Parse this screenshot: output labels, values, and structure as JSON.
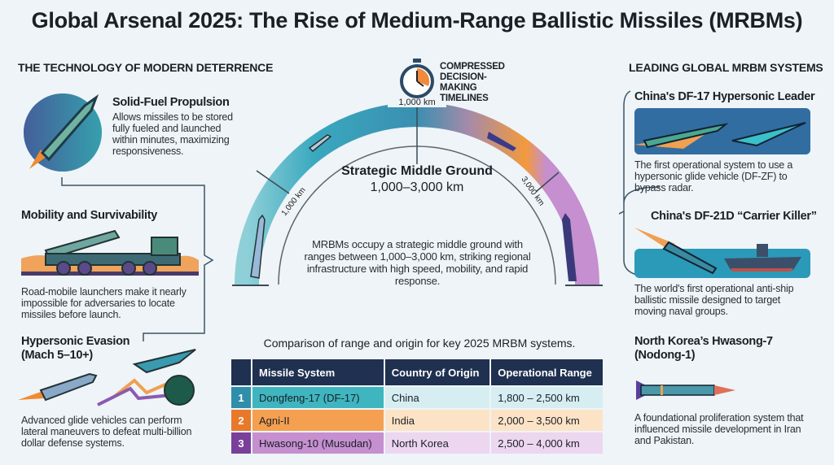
{
  "title": "Global Arsenal 2025: The Rise of Medium-Range Ballistic Missiles (MRBMs)",
  "left": {
    "heading": "THE TECHNOLOGY OF MODERN DETERRENCE",
    "items": [
      {
        "title": "Solid-Fuel Propulsion",
        "text": "Allows missiles to be stored fully fueled and launched within minutes, maximizing responsiveness.",
        "icon": "rocket-icon"
      },
      {
        "title": "Mobility and Survivability",
        "text": "Road-mobile launchers make it nearly impossible for adversaries to locate missiles before launch.",
        "icon": "launcher-truck-icon"
      },
      {
        "title": "Hypersonic Evasion (Mach 5–10+)",
        "text": "Advanced glide vehicles can perform lateral maneuvers to defeat multi-billion dollar defense systems.",
        "icon": "glide-vehicle-radar-icon"
      }
    ]
  },
  "center": {
    "timer_label": "COMPRESSED DECISION-MAKING TIMELINES",
    "arc_title": "Strategic Middle Ground",
    "arc_range": "1,000–3,000 km",
    "tick_top": "1,000 km",
    "tick_left": "1,000 km",
    "tick_right": "3,000 km",
    "description": "MRBMs occupy a strategic middle ground with ranges between 1,000–3,000 km, striking regional infrastructure with high speed, mobility, and rapid response.",
    "colors": {
      "teal": "#3aa8bf",
      "orange": "#f29a3d",
      "purple": "#c58fd0"
    }
  },
  "table": {
    "caption": "Comparison of range and origin for key 2025 MRBM systems.",
    "headers": [
      "Missile System",
      "Country of Origin",
      "Operational Range"
    ],
    "rows": [
      {
        "n": "1",
        "system": "Dongfeng-17 (DF-17)",
        "country": "China",
        "range": "1,800 – 2,500 km",
        "color": "#3fb5c0"
      },
      {
        "n": "2",
        "system": "Agni-II",
        "country": "India",
        "range": "2,000 – 3,500 km",
        "color": "#f5a050"
      },
      {
        "n": "3",
        "system": "Hwasong-10 (Musudan)",
        "country": "North Korea",
        "range": "2,500 – 4,000 km",
        "color": "#c58fd0"
      }
    ]
  },
  "right": {
    "heading": "LEADING GLOBAL MRBM SYSTEMS",
    "items": [
      {
        "title": "China's DF-17 Hypersonic Leader",
        "text": "The first operational system to use a hypersonic glide vehicle (DF-ZF) to bypass radar."
      },
      {
        "title": "China's DF-21D “Carrier Killer”",
        "text": "The world's first operational anti-ship ballistic missile designed to target moving naval groups."
      },
      {
        "title": "North Korea’s Hwasong-7 (Nodong-1)",
        "text": "A foundational proliferation system that influenced missile development in Iran and Pakistan."
      }
    ]
  }
}
